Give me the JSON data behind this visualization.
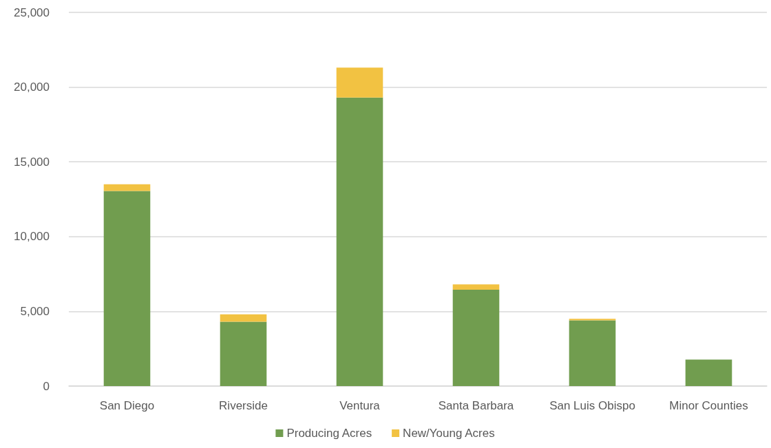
{
  "chart_data": {
    "type": "bar",
    "stacked": true,
    "categories": [
      "San Diego",
      "Riverside",
      "Ventura",
      "Santa Barbara",
      "San Luis Obispo",
      "Minor Counties"
    ],
    "series": [
      {
        "name": "Producing Acres",
        "color": "#719d4f",
        "values": [
          13050,
          4300,
          19300,
          6450,
          4400,
          1770
        ]
      },
      {
        "name": "New/Young Acres",
        "color": "#f2c242",
        "values": [
          450,
          500,
          2000,
          350,
          100,
          0
        ]
      }
    ],
    "ylim": [
      0,
      25000
    ],
    "yticks": [
      {
        "value": 0,
        "label": "0"
      },
      {
        "value": 5000,
        "label": "5,000"
      },
      {
        "value": 10000,
        "label": "10,000"
      },
      {
        "value": 15000,
        "label": "15,000"
      },
      {
        "value": 20000,
        "label": "20,000"
      },
      {
        "value": 25000,
        "label": "25,000"
      }
    ],
    "grid": "y",
    "legend": "bottom"
  }
}
